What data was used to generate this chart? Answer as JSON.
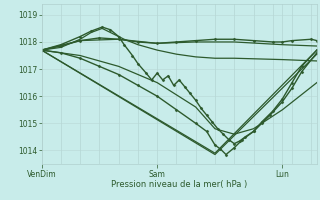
{
  "title": "Pression niveau de la mer( hPa )",
  "bg_color": "#c8ecea",
  "grid_color_v": "#b0d0ce",
  "grid_color_h": "#b8d8d5",
  "line_color": "#2d5a2d",
  "marker_color": "#2d5a2d",
  "ylim": [
    1013.5,
    1019.4
  ],
  "yticks": [
    1014,
    1015,
    1016,
    1017,
    1018,
    1019
  ],
  "xtick_labels": [
    "VenDim",
    "Sam",
    "Lun"
  ],
  "xtick_positions": [
    0.0,
    0.42,
    0.875
  ],
  "xgrid_positions": [
    0.0,
    0.07,
    0.14,
    0.21,
    0.28,
    0.35,
    0.42,
    0.49,
    0.56,
    0.63,
    0.7,
    0.77,
    0.84,
    0.875,
    0.91,
    0.98,
    1.0
  ],
  "series": [
    {
      "x": [
        0.0,
        0.07,
        0.14,
        0.21,
        0.28,
        0.35,
        0.42,
        0.49,
        0.56,
        0.63,
        0.7,
        0.77,
        0.84,
        0.875,
        0.91,
        0.98,
        1.0
      ],
      "y": [
        1017.7,
        1017.85,
        1018.05,
        1018.15,
        1018.1,
        1018.0,
        1017.95,
        1018.0,
        1018.05,
        1018.1,
        1018.1,
        1018.05,
        1018.0,
        1018.0,
        1018.05,
        1018.1,
        1018.05
      ],
      "marker": true,
      "lw": 1.0
    },
    {
      "x": [
        0.0,
        0.14,
        0.28,
        0.42,
        0.56,
        0.7,
        0.875,
        1.0
      ],
      "y": [
        1017.7,
        1018.05,
        1018.1,
        1017.95,
        1018.0,
        1018.0,
        1017.9,
        1017.85
      ],
      "marker": false,
      "lw": 0.9
    },
    {
      "x": [
        0.0,
        0.07,
        0.14,
        0.18,
        0.22,
        0.26,
        0.3,
        0.35,
        0.42,
        0.49,
        0.56,
        0.63,
        0.7,
        0.875,
        1.0
      ],
      "y": [
        1017.7,
        1017.8,
        1018.1,
        1018.35,
        1018.5,
        1018.3,
        1018.1,
        1017.9,
        1017.7,
        1017.55,
        1017.45,
        1017.4,
        1017.4,
        1017.35,
        1017.3
      ],
      "marker": false,
      "lw": 0.9
    },
    {
      "x": [
        0.0,
        0.07,
        0.14,
        0.18,
        0.22,
        0.25,
        0.28,
        0.3,
        0.33,
        0.35,
        0.38,
        0.4,
        0.42,
        0.44,
        0.46,
        0.48,
        0.5,
        0.52,
        0.54,
        0.56,
        0.58,
        0.6,
        0.62,
        0.64,
        0.66,
        0.68,
        0.7,
        0.72,
        0.74,
        0.77,
        0.8,
        0.83,
        0.875,
        0.91,
        0.945,
        1.0
      ],
      "y": [
        1017.7,
        1017.9,
        1018.2,
        1018.4,
        1018.55,
        1018.45,
        1018.2,
        1017.9,
        1017.5,
        1017.2,
        1016.85,
        1016.6,
        1016.85,
        1016.6,
        1016.75,
        1016.4,
        1016.6,
        1016.35,
        1016.1,
        1015.85,
        1015.55,
        1015.3,
        1015.05,
        1014.8,
        1014.6,
        1014.4,
        1014.25,
        1014.35,
        1014.5,
        1014.7,
        1015.0,
        1015.3,
        1015.8,
        1016.3,
        1016.9,
        1017.6
      ],
      "marker": true,
      "lw": 1.0
    },
    {
      "x": [
        0.0,
        0.63,
        1.0
      ],
      "y": [
        1017.7,
        1013.85,
        1017.55
      ],
      "marker": false,
      "lw": 0.9
    },
    {
      "x": [
        0.0,
        0.63,
        1.0
      ],
      "y": [
        1017.7,
        1013.9,
        1017.7
      ],
      "marker": false,
      "lw": 0.9
    },
    {
      "x": [
        0.0,
        0.07,
        0.14,
        0.21,
        0.28,
        0.35,
        0.42,
        0.49,
        0.56,
        0.6,
        0.63,
        0.65,
        0.67,
        0.7,
        0.73,
        0.77,
        0.8,
        0.84,
        0.875,
        0.91,
        0.945,
        1.0
      ],
      "y": [
        1017.7,
        1017.6,
        1017.4,
        1017.1,
        1016.8,
        1016.4,
        1016.0,
        1015.5,
        1015.0,
        1014.7,
        1014.2,
        1014.05,
        1013.85,
        1014.1,
        1014.4,
        1014.7,
        1015.05,
        1015.45,
        1015.9,
        1016.5,
        1017.1,
        1017.7
      ],
      "marker": true,
      "lw": 1.0
    },
    {
      "x": [
        0.0,
        0.14,
        0.28,
        0.42,
        0.56,
        0.63,
        0.7,
        0.77,
        0.875,
        1.0
      ],
      "y": [
        1017.7,
        1017.5,
        1017.1,
        1016.5,
        1015.6,
        1014.8,
        1014.6,
        1014.8,
        1015.5,
        1016.5
      ],
      "marker": false,
      "lw": 0.9
    }
  ]
}
